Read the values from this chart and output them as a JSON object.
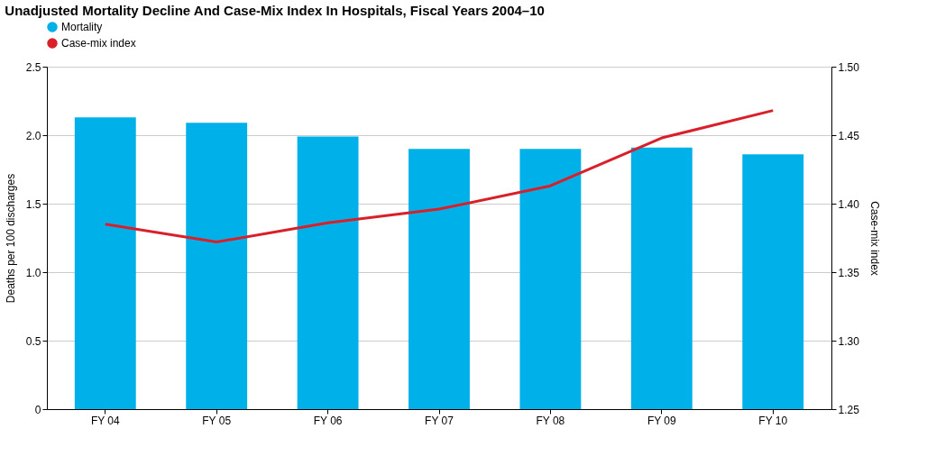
{
  "chart_data": {
    "type": "bar",
    "title": "Unadjusted Mortality Decline And Case-Mix Index In Hospitals, Fiscal Years 2004–10",
    "categories": [
      "FY 04",
      "FY 05",
      "FY 06",
      "FY 07",
      "FY 08",
      "FY 09",
      "FY 10"
    ],
    "series": [
      {
        "name": "Mortality",
        "color": "#00b0e8",
        "values": [
          2.13,
          2.09,
          1.99,
          1.9,
          1.9,
          1.91,
          1.86
        ]
      },
      {
        "name": "Case-mix index",
        "type": "line",
        "axis": "y2",
        "color": "#d9202a",
        "values": [
          1.385,
          1.372,
          1.386,
          1.396,
          1.413,
          1.448,
          1.468
        ]
      }
    ],
    "ylabel": "Deaths per 100 discharges",
    "y2label": "Case-mix index",
    "ylim": [
      0,
      2.5
    ],
    "yticks": [
      0,
      0.5,
      {
        "value": 1,
        "label": "1.0"
      },
      1.5,
      {
        "value": 2,
        "label": "2.0"
      },
      2.5
    ],
    "y2lim": [
      1.25,
      1.5
    ],
    "y2ticks": [
      1.25,
      {
        "value": 1.3,
        "label": "1.30"
      },
      1.35,
      {
        "value": 1.4,
        "label": "1.40"
      },
      1.45,
      {
        "value": 1.5,
        "label": "1.50"
      }
    ],
    "grid": "y",
    "legend": "top",
    "line_style": "solid",
    "marker": "none"
  }
}
